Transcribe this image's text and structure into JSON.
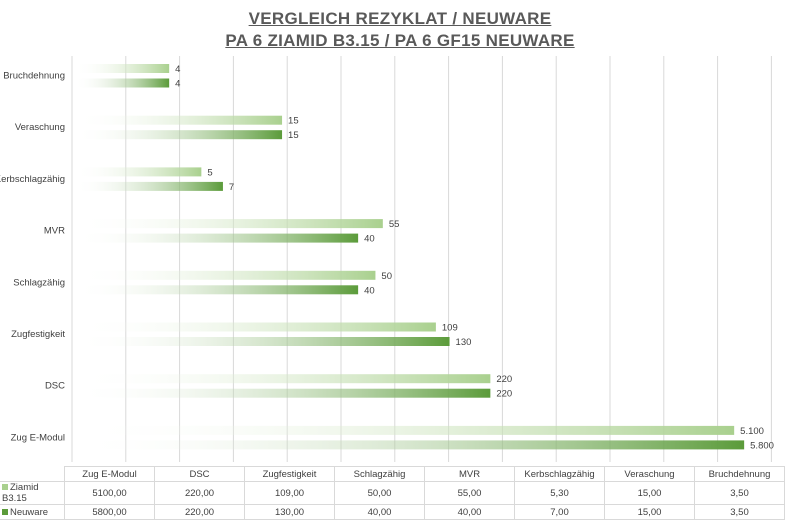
{
  "chart_data": {
    "type": "bar",
    "orientation": "horizontal",
    "title": "VERGLEICH REZYKLAT / NEUWARE",
    "subtitle": "PA 6 ZIAMID B3.15 / PA 6 GF15 NEUWARE",
    "xscale": "log",
    "grid": true,
    "legend": "data-table-bottom",
    "categories": [
      "Zug E-Modul",
      "DSC",
      "Zugfestigkeit",
      "Schlagzähig",
      "MVR",
      "Kerbschlagzähig",
      "Veraschung",
      "Bruchdehnung"
    ],
    "series": [
      {
        "name": "Ziamid B3.15",
        "color": "#a9d08e",
        "values": [
          5100,
          220,
          109,
          50,
          55,
          5.3,
          15,
          3.5
        ],
        "data_labels": [
          "5.100",
          "220",
          "109",
          "50",
          "55",
          "5",
          "15",
          "4"
        ],
        "table_values": [
          "5100,00",
          "220,00",
          "109,00",
          "50,00",
          "55,00",
          "5,30",
          "15,00",
          "3,50"
        ]
      },
      {
        "name": "Neuware",
        "color": "#5b9b3a",
        "values": [
          5800,
          220,
          130,
          40,
          40,
          7,
          15,
          3.5
        ],
        "data_labels": [
          "5.800",
          "220",
          "130",
          "40",
          "40",
          "7",
          "15",
          "4"
        ],
        "table_values": [
          "5800,00",
          "220,00",
          "130,00",
          "40,00",
          "40,00",
          "7,00",
          "15,00",
          "3,50"
        ]
      }
    ]
  }
}
